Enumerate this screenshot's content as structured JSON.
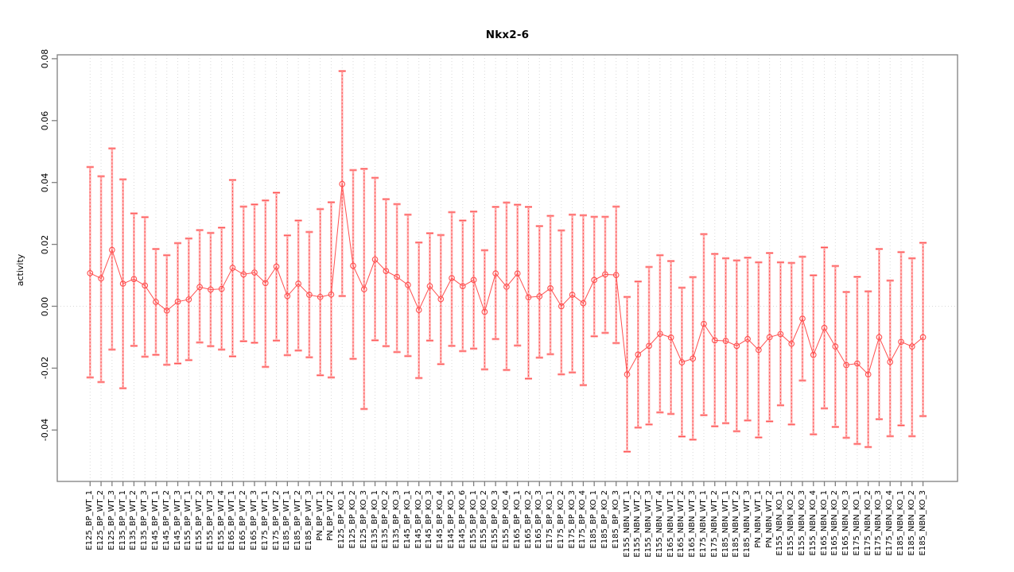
{
  "header": {
    "title": "Nkx2-6"
  },
  "chart_data": {
    "type": "scatter",
    "subtype": "means-with-error-bars-connected-line",
    "title": "Nkx2-6",
    "xlabel": "",
    "ylabel": "activity",
    "ylim": [
      -0.057,
      0.081
    ],
    "yticks": [
      0.08,
      0.06,
      0.04,
      0.02,
      0.0,
      -0.02,
      -0.04
    ],
    "ytick_labels": [
      "0.08",
      "0.06",
      "0.04",
      "0.02",
      "0.00",
      "-0.02",
      "-0.04"
    ],
    "grid": "vertical dotted gridline at every category; dotted horizontal line at y=0",
    "legend": "none",
    "colors": {
      "point": "#ff5050",
      "line": "#ff5050",
      "error_bar_fill": "#ffb3b3",
      "error_bar_dash": "#ff5050",
      "grid": "#d9d9d9",
      "frame": "#808080",
      "text": "#000000"
    },
    "categories": [
      "E125_BP_WT_1",
      "E125_BP_WT_2",
      "E125_BP_WT_3",
      "E135_BP_WT_1",
      "E135_BP_WT_2",
      "E135_BP_WT_3",
      "E145_BP_WT_1",
      "E145_BP_WT_2",
      "E145_BP_WT_3",
      "E155_BP_WT_1",
      "E155_BP_WT_2",
      "E155_BP_WT_3",
      "E155_BP_WT_4",
      "E165_BP_WT_1",
      "E165_BP_WT_2",
      "E165_BP_WT_3",
      "E175_BP_WT_1",
      "E175_BP_WT_2",
      "E185_BP_WT_1",
      "E185_BP_WT_2",
      "E185_BP_WT_3",
      "PN_BP_WT_1",
      "PN_BP_WT_2",
      "E125_BP_KO_1",
      "E125_BP_KO_2",
      "E125_BP_KO_3",
      "E135_BP_KO_1",
      "E135_BP_KO_2",
      "E135_BP_KO_3",
      "E145_BP_KO_1",
      "E145_BP_KO_2",
      "E145_BP_KO_3",
      "E145_BP_KO_4",
      "E145_BP_KO_5",
      "E145_BP_KO_6",
      "E155_BP_KO_1",
      "E155_BP_KO_2",
      "E155_BP_KO_3",
      "E155_BP_KO_4",
      "E165_BP_KO_1",
      "E165_BP_KO_2",
      "E165_BP_KO_3",
      "E175_BP_KO_1",
      "E175_BP_KO_2",
      "E175_BP_KO_3",
      "E175_BP_KO_4",
      "E185_BP_KO_1",
      "E185_BP_KO_2",
      "E185_BP_KO_3",
      "E155_NBN_WT_1",
      "E155_NBN_WT_2",
      "E155_NBN_WT_3",
      "E155_NBN_WT_4",
      "E165_NBN_WT_1",
      "E165_NBN_WT_2",
      "E165_NBN_WT_3",
      "E175_NBN_WT_1",
      "E175_NBN_WT_2",
      "E185_NBN_WT_1",
      "E185_NBN_WT_2",
      "E185_NBN_WT_3",
      "PN_NBN_WT_1",
      "PN_NBN_WT_2",
      "E155_NBN_KO_1",
      "E155_NBN_KO_2",
      "E155_NBN_KO_3",
      "E155_NBN_KO_4",
      "E165_NBN_KO_1",
      "E165_NBN_KO_2",
      "E165_NBN_KO_3",
      "E175_NBN_KO_1",
      "E175_NBN_KO_2",
      "E175_NBN_KO_3",
      "E175_NBN_KO_4",
      "E185_NBN_KO_1",
      "E185_NBN_KO_2",
      "E185_NBN_KO_3"
    ],
    "series": [
      {
        "name": "mean",
        "values": [
          0.0107,
          0.009,
          0.0182,
          0.0073,
          0.0088,
          0.0067,
          0.0014,
          -0.0014,
          0.0015,
          0.0022,
          0.0062,
          0.0054,
          0.0056,
          0.0124,
          0.0103,
          0.0109,
          0.0075,
          0.0128,
          0.0033,
          0.0073,
          0.0037,
          0.003,
          0.0038,
          0.0395,
          0.0131,
          0.0055,
          0.0151,
          0.0114,
          0.0095,
          0.0069,
          -0.0012,
          0.0065,
          0.0023,
          0.0091,
          0.0065,
          0.0085,
          -0.0018,
          0.0106,
          0.0063,
          0.0106,
          0.0029,
          0.0032,
          0.0058,
          0.0,
          0.0037,
          0.001,
          0.0085,
          0.0103,
          0.0101,
          -0.022,
          -0.0156,
          -0.0128,
          -0.0089,
          -0.0101,
          -0.0181,
          -0.0169,
          -0.0057,
          -0.011,
          -0.0112,
          -0.0128,
          -0.0106,
          -0.0141,
          -0.01,
          -0.009,
          -0.0121,
          -0.004,
          -0.0157,
          -0.007,
          -0.013,
          -0.019,
          -0.0185,
          -0.022,
          -0.01,
          -0.018,
          -0.0115,
          -0.013,
          -0.01
        ]
      },
      {
        "name": "error_upper",
        "values": [
          0.045,
          0.042,
          0.051,
          0.041,
          0.03,
          0.0288,
          0.0185,
          0.0165,
          0.0204,
          0.0219,
          0.0246,
          0.0237,
          0.0254,
          0.0408,
          0.0322,
          0.0329,
          0.0342,
          0.0367,
          0.0229,
          0.0277,
          0.024,
          0.0314,
          0.0336,
          0.076,
          0.044,
          0.0444,
          0.0415,
          0.0346,
          0.033,
          0.0296,
          0.0206,
          0.0236,
          0.023,
          0.0304,
          0.0277,
          0.0306,
          0.0181,
          0.0321,
          0.0335,
          0.0328,
          0.0321,
          0.0259,
          0.0292,
          0.0245,
          0.0296,
          0.0294,
          0.0289,
          0.0289,
          0.0322,
          0.003,
          0.008,
          0.0127,
          0.0165,
          0.0146,
          0.006,
          0.0094,
          0.0233,
          0.0169,
          0.0155,
          0.0148,
          0.0157,
          0.0142,
          0.0172,
          0.0142,
          0.014,
          0.016,
          0.01,
          0.019,
          0.013,
          0.0046,
          0.0095,
          0.0048,
          0.0185,
          0.0083,
          0.0175,
          0.0155,
          0.0205
        ]
      },
      {
        "name": "error_lower",
        "values": [
          -0.023,
          -0.0245,
          -0.014,
          -0.0265,
          -0.0128,
          -0.0163,
          -0.0157,
          -0.0189,
          -0.0185,
          -0.0174,
          -0.0117,
          -0.0129,
          -0.014,
          -0.0162,
          -0.0113,
          -0.0118,
          -0.0196,
          -0.0111,
          -0.0158,
          -0.0143,
          -0.0165,
          -0.0223,
          -0.023,
          0.0033,
          -0.017,
          -0.0332,
          -0.011,
          -0.0129,
          -0.0148,
          -0.0161,
          -0.0232,
          -0.0111,
          -0.0187,
          -0.0128,
          -0.0145,
          -0.0137,
          -0.0204,
          -0.0106,
          -0.0206,
          -0.0127,
          -0.0234,
          -0.0166,
          -0.0155,
          -0.022,
          -0.0214,
          -0.0255,
          -0.0097,
          -0.0086,
          -0.0119,
          -0.047,
          -0.0392,
          -0.0382,
          -0.0343,
          -0.0348,
          -0.0421,
          -0.0431,
          -0.0352,
          -0.0388,
          -0.0378,
          -0.0404,
          -0.0369,
          -0.0424,
          -0.0372,
          -0.032,
          -0.0382,
          -0.024,
          -0.0414,
          -0.033,
          -0.039,
          -0.0425,
          -0.0445,
          -0.0455,
          -0.0365,
          -0.042,
          -0.0385,
          -0.042,
          -0.0355
        ]
      }
    ]
  }
}
